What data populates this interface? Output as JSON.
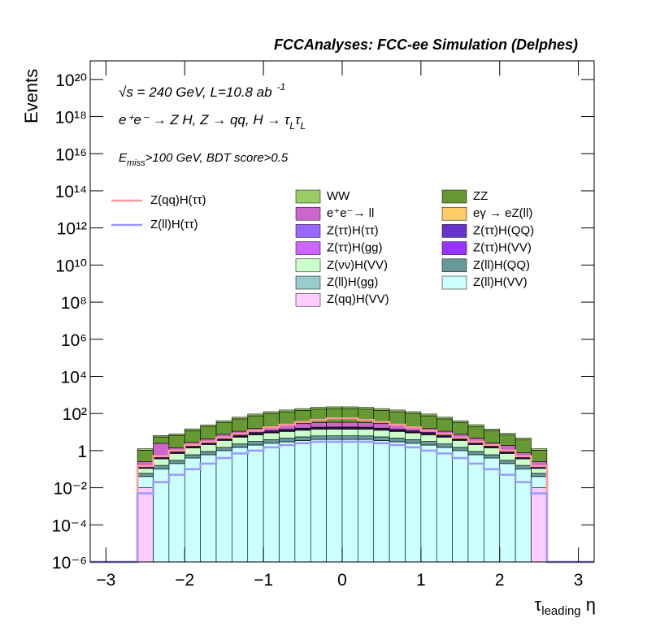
{
  "chart_data": {
    "type": "stacked_histogram",
    "title": "FCCAnalyses: FCC-ee Simulation (Delphes)",
    "y_label": "Events",
    "x_label": {
      "main": "τ",
      "sub": "leading",
      "after": " η"
    },
    "annotations": [
      {
        "main": "√s = 240 GeV, L=10.8 ab",
        "sup": "-1"
      },
      {
        "main": "e⁺e⁻ → Z H, Z → qq, H → τ",
        "sub": "L",
        "after": "τ",
        "sub2": "L"
      },
      {
        "main": "E",
        "sub": "miss",
        "after": ">100 GeV, BDT score>0.5"
      }
    ],
    "log_y": true,
    "xlim": [
      -3.2,
      3.2
    ],
    "ylim": [
      1e-06,
      1e+21
    ],
    "xticks": [
      {
        "value": -3,
        "label": "−3"
      },
      {
        "value": -2,
        "label": "−2"
      },
      {
        "value": -1,
        "label": "−1"
      },
      0,
      1,
      2,
      3
    ],
    "yticks": [
      {
        "value": 1e-06,
        "label": "10⁻⁶"
      },
      {
        "value": 0.0001,
        "label": "10⁻⁴"
      },
      {
        "value": 0.01,
        "label": "10⁻²"
      },
      1,
      {
        "value": 100.0,
        "label": "10²"
      },
      {
        "value": 10000.0,
        "label": "10⁴"
      },
      {
        "value": 1000000.0,
        "label": "10⁶"
      },
      {
        "value": 100000000.0,
        "label": "10⁸"
      },
      {
        "value": 10000000000.0,
        "label": "10¹⁰"
      },
      {
        "value": 1000000000000.0,
        "label": "10¹²"
      },
      {
        "value": 100000000000000.0,
        "label": "10¹⁴"
      },
      {
        "value": 1e+16,
        "label": "10¹⁶"
      },
      {
        "value": 1e+18,
        "label": "10¹⁸"
      },
      {
        "value": 1e+20,
        "label": "10²⁰"
      }
    ],
    "bins": [
      -2.6,
      -2.4,
      -2.2,
      -2.0,
      -1.8,
      -1.6,
      -1.4,
      -1.2,
      -1.0,
      -0.8,
      -0.6,
      -0.4,
      -0.2,
      0,
      0.2,
      0.4,
      0.6,
      0.8,
      1.0,
      1.2,
      1.4,
      1.6,
      1.8,
      2.0,
      2.2,
      2.4,
      2.6
    ],
    "series": [
      {
        "name": "WW",
        "color": "#99cc66",
        "values": [
          0.2,
          1,
          1.5,
          3,
          5,
          8,
          12,
          18,
          25,
          30,
          35,
          40,
          45,
          45,
          40,
          35,
          30,
          25,
          18,
          12,
          8,
          5,
          3,
          1.5,
          1,
          0.2
        ]
      },
      {
        "name": "ZZ",
        "color": "#669933",
        "values": [
          0.8,
          3,
          5,
          9,
          15,
          25,
          40,
          60,
          80,
          100,
          120,
          140,
          150,
          150,
          140,
          120,
          100,
          80,
          60,
          40,
          25,
          15,
          9,
          5,
          3,
          0.8
        ]
      },
      {
        "name": "e⁺e⁻→ ll",
        "color": "#cc66cc",
        "values": [
          0.1,
          2,
          0.5,
          1,
          1.5,
          3,
          4,
          6,
          8,
          10,
          12,
          14,
          15,
          15,
          14,
          12,
          10,
          8,
          6,
          4,
          3,
          2,
          0.8,
          1,
          0.3,
          0.1
        ]
      },
      {
        "name": "eγ → eZ(ll)",
        "color": "#ffcc66",
        "values": [
          0,
          0,
          0,
          0,
          0,
          0,
          0,
          0,
          0,
          0,
          0,
          0,
          0,
          0.02,
          0,
          0.02,
          0,
          0,
          0,
          0,
          0,
          0,
          0,
          0,
          0,
          0
        ]
      },
      {
        "name": "Z(ττ)H(ττ)",
        "color": "#9966ff",
        "values": [
          0.01,
          0.02,
          0.04,
          0.08,
          0.15,
          0.25,
          0.4,
          0.5,
          0.6,
          0.7,
          0.8,
          0.9,
          1,
          1,
          0.9,
          0.8,
          0.7,
          0.6,
          0.5,
          0.4,
          0.25,
          0.15,
          0.08,
          0.04,
          0.02,
          0.01
        ]
      },
      {
        "name": "Z(ττ)H(QQ)",
        "color": "#6633cc",
        "values": [
          0.02,
          0.05,
          0.1,
          0.2,
          0.3,
          0.5,
          0.8,
          1,
          1.3,
          1.5,
          1.7,
          1.9,
          2,
          2,
          1.9,
          1.7,
          1.5,
          1.3,
          1,
          0.8,
          0.5,
          0.3,
          0.2,
          0.1,
          0.05,
          0.02
        ]
      },
      {
        "name": "Z(ττ)H(gg)",
        "color": "#cc66ff",
        "values": [
          0,
          0.003,
          0.005,
          0.01,
          0.02,
          0.03,
          0.05,
          0.06,
          0.07,
          0.08,
          0.09,
          0.1,
          0.1,
          0.1,
          0.1,
          0.09,
          0.08,
          0.07,
          0.06,
          0.05,
          0.03,
          0.02,
          0.01,
          0.005,
          0.003,
          0
        ]
      },
      {
        "name": "Z(ττ)H(VV)",
        "color": "#9933ff",
        "values": [
          0.01,
          0.03,
          0.05,
          0.1,
          0.2,
          0.3,
          0.5,
          0.7,
          0.8,
          1,
          1.1,
          1.2,
          1.2,
          1.2,
          1.2,
          1.1,
          1,
          0.8,
          0.7,
          0.5,
          0.3,
          0.2,
          0.1,
          0.05,
          0.03,
          0.01
        ]
      },
      {
        "name": "Z(νν)H(VV)",
        "color": "#ccffcc",
        "values": [
          0.05,
          0.2,
          0.4,
          0.8,
          1.2,
          2,
          3,
          4,
          5,
          6,
          7,
          8,
          8,
          8,
          8,
          7,
          6,
          5,
          4,
          3,
          2,
          1.2,
          0.8,
          0.4,
          0.2,
          0.05
        ]
      },
      {
        "name": "Z(ll)H(QQ)",
        "color": "#669999",
        "values": [
          0.02,
          0.06,
          0.1,
          0.2,
          0.3,
          0.5,
          0.8,
          1.1,
          1.4,
          1.7,
          2,
          2.2,
          2.3,
          2.3,
          2.2,
          2,
          1.7,
          1.4,
          1.1,
          0.8,
          0.5,
          0.3,
          0.2,
          0.1,
          0.06,
          0.02
        ]
      },
      {
        "name": "Z(ll)H(gg)",
        "color": "#99cccc",
        "values": [
          0,
          0,
          0,
          0,
          0,
          0,
          0.01,
          0.012,
          0.01,
          0.012,
          0.015,
          0.01,
          0.008,
          0.008,
          0.01,
          0.015,
          0.012,
          0.01,
          0.012,
          0.01,
          0,
          0,
          0,
          0,
          0,
          0
        ]
      },
      {
        "name": "Z(ll)H(VV)",
        "color": "#ccffff",
        "values": [
          0.03,
          0.1,
          0.2,
          0.4,
          0.6,
          1,
          1.5,
          2,
          2.5,
          3,
          3.5,
          4,
          4,
          4,
          4,
          3.5,
          3,
          2.5,
          2,
          1.5,
          1,
          0.6,
          0.4,
          0.2,
          0.1,
          0.03
        ]
      },
      {
        "name": "Z(qq)H(VV)",
        "color": "#ffccff",
        "values": [
          0.01,
          0,
          0,
          0,
          0,
          0,
          0,
          0,
          0,
          0,
          0,
          0,
          0,
          0,
          0,
          0,
          0,
          0,
          0,
          0,
          0,
          0,
          0,
          0,
          0,
          0.01
        ]
      }
    ],
    "lines": [
      {
        "name": "Z(qq)H(ττ)",
        "color": "#ff9999",
        "values": [
          0.15,
          0.5,
          1,
          2,
          3,
          5,
          8,
          12,
          18,
          25,
          35,
          45,
          55,
          55,
          45,
          35,
          25,
          18,
          12,
          8,
          5,
          3,
          2,
          1,
          0.5,
          0.15
        ]
      },
      {
        "name": "Z(ll)H(ττ)",
        "color": "#9999ff",
        "values": [
          0.005,
          0.02,
          0.05,
          0.1,
          0.2,
          0.4,
          0.7,
          1,
          1.5,
          2,
          2.5,
          3,
          3,
          3,
          3,
          2.5,
          2,
          1.5,
          1,
          0.7,
          0.4,
          0.2,
          0.1,
          0.05,
          0.02,
          0.005
        ]
      }
    ]
  }
}
